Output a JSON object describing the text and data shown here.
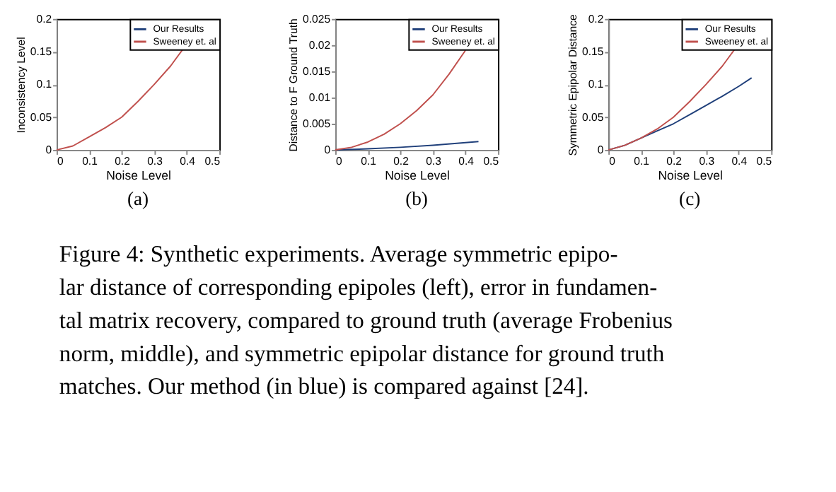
{
  "chart_data": [
    {
      "type": "line",
      "subtitle": "(a)",
      "xlabel": "Noise Level",
      "ylabel": "Inconsistency Level",
      "xlim": [
        0,
        0.5
      ],
      "xticks": [
        0,
        0.1,
        0.2,
        0.3,
        0.4,
        0.5
      ],
      "ylim": [
        0,
        0.2
      ],
      "yticks": [
        0,
        0.05,
        0.1,
        0.15,
        0.2
      ],
      "legend": "top right",
      "grid": false,
      "x": [
        0,
        0.05,
        0.1,
        0.15,
        0.2,
        0.25,
        0.3,
        0.35,
        0.39
      ],
      "series": [
        {
          "name": "Our Results",
          "color": "#1f3f7a",
          "values": [
            null,
            null,
            null,
            null,
            null,
            null,
            null,
            null,
            null
          ]
        },
        {
          "name": "Sweeney et. al",
          "color": "#c0504d",
          "values": [
            0,
            0.006,
            0.02,
            0.034,
            0.05,
            0.074,
            0.1,
            0.128,
            0.155
          ]
        }
      ]
    },
    {
      "type": "line",
      "subtitle": "(b)",
      "xlabel": "Noise Level",
      "ylabel": "Distance to F Ground Truth",
      "xlim": [
        0,
        0.5
      ],
      "xticks": [
        0,
        0.1,
        0.2,
        0.3,
        0.4,
        0.5
      ],
      "ylim": [
        0,
        0.025
      ],
      "yticks": [
        0,
        0.005,
        0.01,
        0.015,
        0.02,
        0.025
      ],
      "legend": "top right",
      "grid": false,
      "series": [
        {
          "name": "Our Results",
          "color": "#1f3f7a",
          "x": [
            0,
            0.1,
            0.2,
            0.3,
            0.44
          ],
          "values": [
            0,
            0.0002,
            0.0005,
            0.0009,
            0.0016
          ]
        },
        {
          "name": "Sweeney et. al",
          "color": "#c0504d",
          "x": [
            0,
            0.05,
            0.1,
            0.15,
            0.2,
            0.25,
            0.3,
            0.35,
            0.4
          ],
          "values": [
            0,
            0.0005,
            0.0015,
            0.003,
            0.005,
            0.0075,
            0.0105,
            0.0145,
            0.019
          ]
        }
      ]
    },
    {
      "type": "line",
      "subtitle": "(c)",
      "xlabel": "Noise Level",
      "ylabel": "Symmetric Epipolar Distance",
      "xlim": [
        0,
        0.5
      ],
      "xticks": [
        0,
        0.1,
        0.2,
        0.3,
        0.4,
        0.5
      ],
      "ylim": [
        0,
        0.2
      ],
      "yticks": [
        0,
        0.05,
        0.1,
        0.15,
        0.2
      ],
      "legend": "top right",
      "grid": false,
      "series": [
        {
          "name": "Our Results",
          "color": "#1f3f7a",
          "x": [
            0,
            0.05,
            0.1,
            0.15,
            0.2,
            0.25,
            0.3,
            0.35,
            0.4,
            0.44
          ],
          "values": [
            0,
            0.007,
            0.018,
            0.029,
            0.04,
            0.054,
            0.068,
            0.082,
            0.097,
            0.11
          ]
        },
        {
          "name": "Sweeney et. al",
          "color": "#c0504d",
          "x": [
            0,
            0.05,
            0.1,
            0.15,
            0.2,
            0.25,
            0.3,
            0.35,
            0.39
          ],
          "values": [
            0,
            0.007,
            0.018,
            0.032,
            0.05,
            0.074,
            0.1,
            0.128,
            0.155
          ]
        }
      ]
    },
    {
      "type": "other",
      "annotations": [
        "Figure 4:  Synthetic experiments.  Average symmetric epipo-",
        "lar distance of corresponding epipoles (left), error in fundamen-",
        "tal matrix recovery, compared to ground truth (average Frobenius",
        "norm, middle), and symmetric epipolar distance for ground truth",
        "matches. Our method (in blue) is compared against [24]."
      ]
    }
  ]
}
